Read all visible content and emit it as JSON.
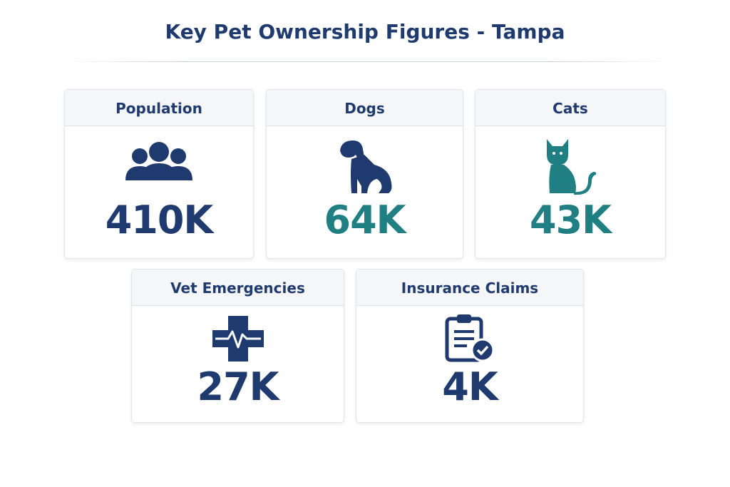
{
  "title": "Key Pet Ownership Figures - Tampa",
  "cards": [
    {
      "label": "Population",
      "value": "410K",
      "color": "#1f3a6e"
    },
    {
      "label": "Dogs",
      "value": "64K",
      "color": "#1f7f82"
    },
    {
      "label": "Cats",
      "value": "43K",
      "color": "#1f7f82"
    },
    {
      "label": "Vet Emergencies",
      "value": "27K",
      "color": "#1f3a6e"
    },
    {
      "label": "Insurance Claims",
      "value": "4K",
      "color": "#1f3a6e"
    }
  ]
}
